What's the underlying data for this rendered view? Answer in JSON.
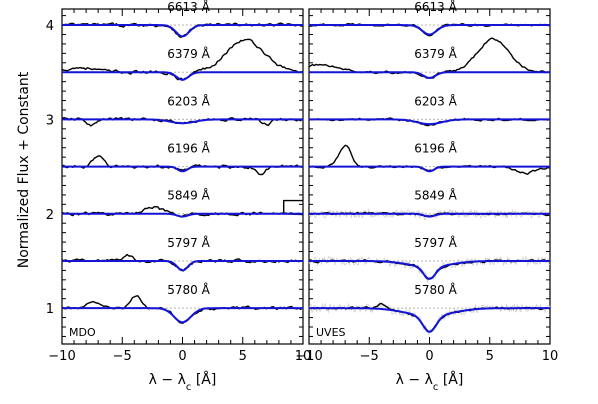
{
  "chart_data": {
    "type": "line",
    "ylabel": "Normalized Flux + Constant",
    "xlabel": "λ − λ",
    "xlabel_sub": "c",
    "xlabel_unit": " [Å]",
    "xlim": [
      -10,
      10
    ],
    "ylim": [
      0.62,
      4.17
    ],
    "yticks": [
      1,
      2,
      3,
      4
    ],
    "ytick_labels": [
      "1",
      "2",
      "3",
      "4"
    ],
    "xticks": [
      -10,
      -5,
      0,
      5,
      10
    ],
    "xtick_labels": [
      "−10",
      "−5",
      "0",
      "5",
      "10"
    ],
    "colors": {
      "observed": "#000000",
      "fit": "#1414d6",
      "raw": "#d0d0d0",
      "continuum": "#b5b5b5"
    },
    "panels": [
      {
        "label": "MDO",
        "bands": [
          {
            "label": "6613 Å",
            "offset": 4.0,
            "fit": {
              "depth": 0.12,
              "sigma": 0.55,
              "wing": 0
            },
            "features": []
          },
          {
            "label": "6379 Å",
            "offset": 3.5,
            "fit": {
              "depth": 0.08,
              "sigma": 0.5,
              "wing": 0
            },
            "features": [
              {
                "c": 5.2,
                "a": 0.34,
                "s": 1.6
              },
              {
                "c": -8.5,
                "a": 0.05,
                "s": 1.2
              }
            ]
          },
          {
            "label": "6203 Å",
            "offset": 3.0,
            "fit": {
              "depth": 0.04,
              "sigma": 1.0,
              "wing": 0
            },
            "features": [
              {
                "c": -7.5,
                "a": -0.06,
                "s": 0.4
              },
              {
                "c": 7.0,
                "a": -0.05,
                "s": 0.4
              }
            ]
          },
          {
            "label": "6196 Å",
            "offset": 2.5,
            "fit": {
              "depth": 0.05,
              "sigma": 0.4,
              "wing": 0
            },
            "features": [
              {
                "c": -7.0,
                "a": 0.1,
                "s": 0.45
              },
              {
                "c": 6.5,
                "a": -0.08,
                "s": 0.4
              }
            ]
          },
          {
            "label": "5849 Å",
            "offset": 2.0,
            "fit": {
              "depth": 0.03,
              "sigma": 0.45,
              "wing": 0
            },
            "features": [
              {
                "c": -2.5,
                "a": 0.08,
                "s": 0.7
              }
            ]
          },
          {
            "label": "5797 Å",
            "offset": 1.5,
            "fit": {
              "depth": 0.1,
              "sigma": 0.45,
              "wing": 0
            },
            "features": [
              {
                "c": -4.5,
                "a": 0.06,
                "s": 0.4
              }
            ]
          },
          {
            "label": "5780 Å",
            "offset": 1.0,
            "fit": {
              "depth": 0.15,
              "sigma": 0.7,
              "wing": 0
            },
            "features": [
              {
                "c": -3.8,
                "a": 0.13,
                "s": 0.4
              },
              {
                "c": -7.5,
                "a": 0.06,
                "s": 0.5
              }
            ]
          }
        ]
      },
      {
        "label": "UVES",
        "bands": [
          {
            "label": "6613 Å",
            "offset": 4.0,
            "fit": {
              "depth": 0.1,
              "sigma": 0.6,
              "wing": 0
            },
            "features": []
          },
          {
            "label": "6379 Å",
            "offset": 3.5,
            "fit": {
              "depth": 0.06,
              "sigma": 0.5,
              "wing": 0
            },
            "features": [
              {
                "c": 5.3,
                "a": 0.35,
                "s": 1.3
              },
              {
                "c": -9.0,
                "a": 0.08,
                "s": 1.4
              }
            ]
          },
          {
            "label": "6203 Å",
            "offset": 3.0,
            "fit": {
              "depth": 0.05,
              "sigma": 1.0,
              "wing": 0
            },
            "features": []
          },
          {
            "label": "6196 Å",
            "offset": 2.5,
            "fit": {
              "depth": 0.05,
              "sigma": 0.4,
              "wing": 0
            },
            "features": [
              {
                "c": -7.0,
                "a": 0.22,
                "s": 0.5
              },
              {
                "c": 8.0,
                "a": -0.07,
                "s": 0.8
              }
            ]
          },
          {
            "label": "5849 Å",
            "offset": 2.0,
            "fit": {
              "depth": 0.03,
              "sigma": 0.45,
              "wing": 0
            },
            "features": []
          },
          {
            "label": "5797 Å",
            "offset": 1.5,
            "fit": {
              "depth": 0.13,
              "sigma": 0.5,
              "wing": 0.06
            },
            "features": []
          },
          {
            "label": "5780 Å",
            "offset": 1.0,
            "fit": {
              "depth": 0.17,
              "sigma": 0.55,
              "wing": 0.08
            },
            "features": [
              {
                "c": -4.0,
                "a": 0.05,
                "s": 0.3
              }
            ]
          }
        ]
      }
    ]
  }
}
